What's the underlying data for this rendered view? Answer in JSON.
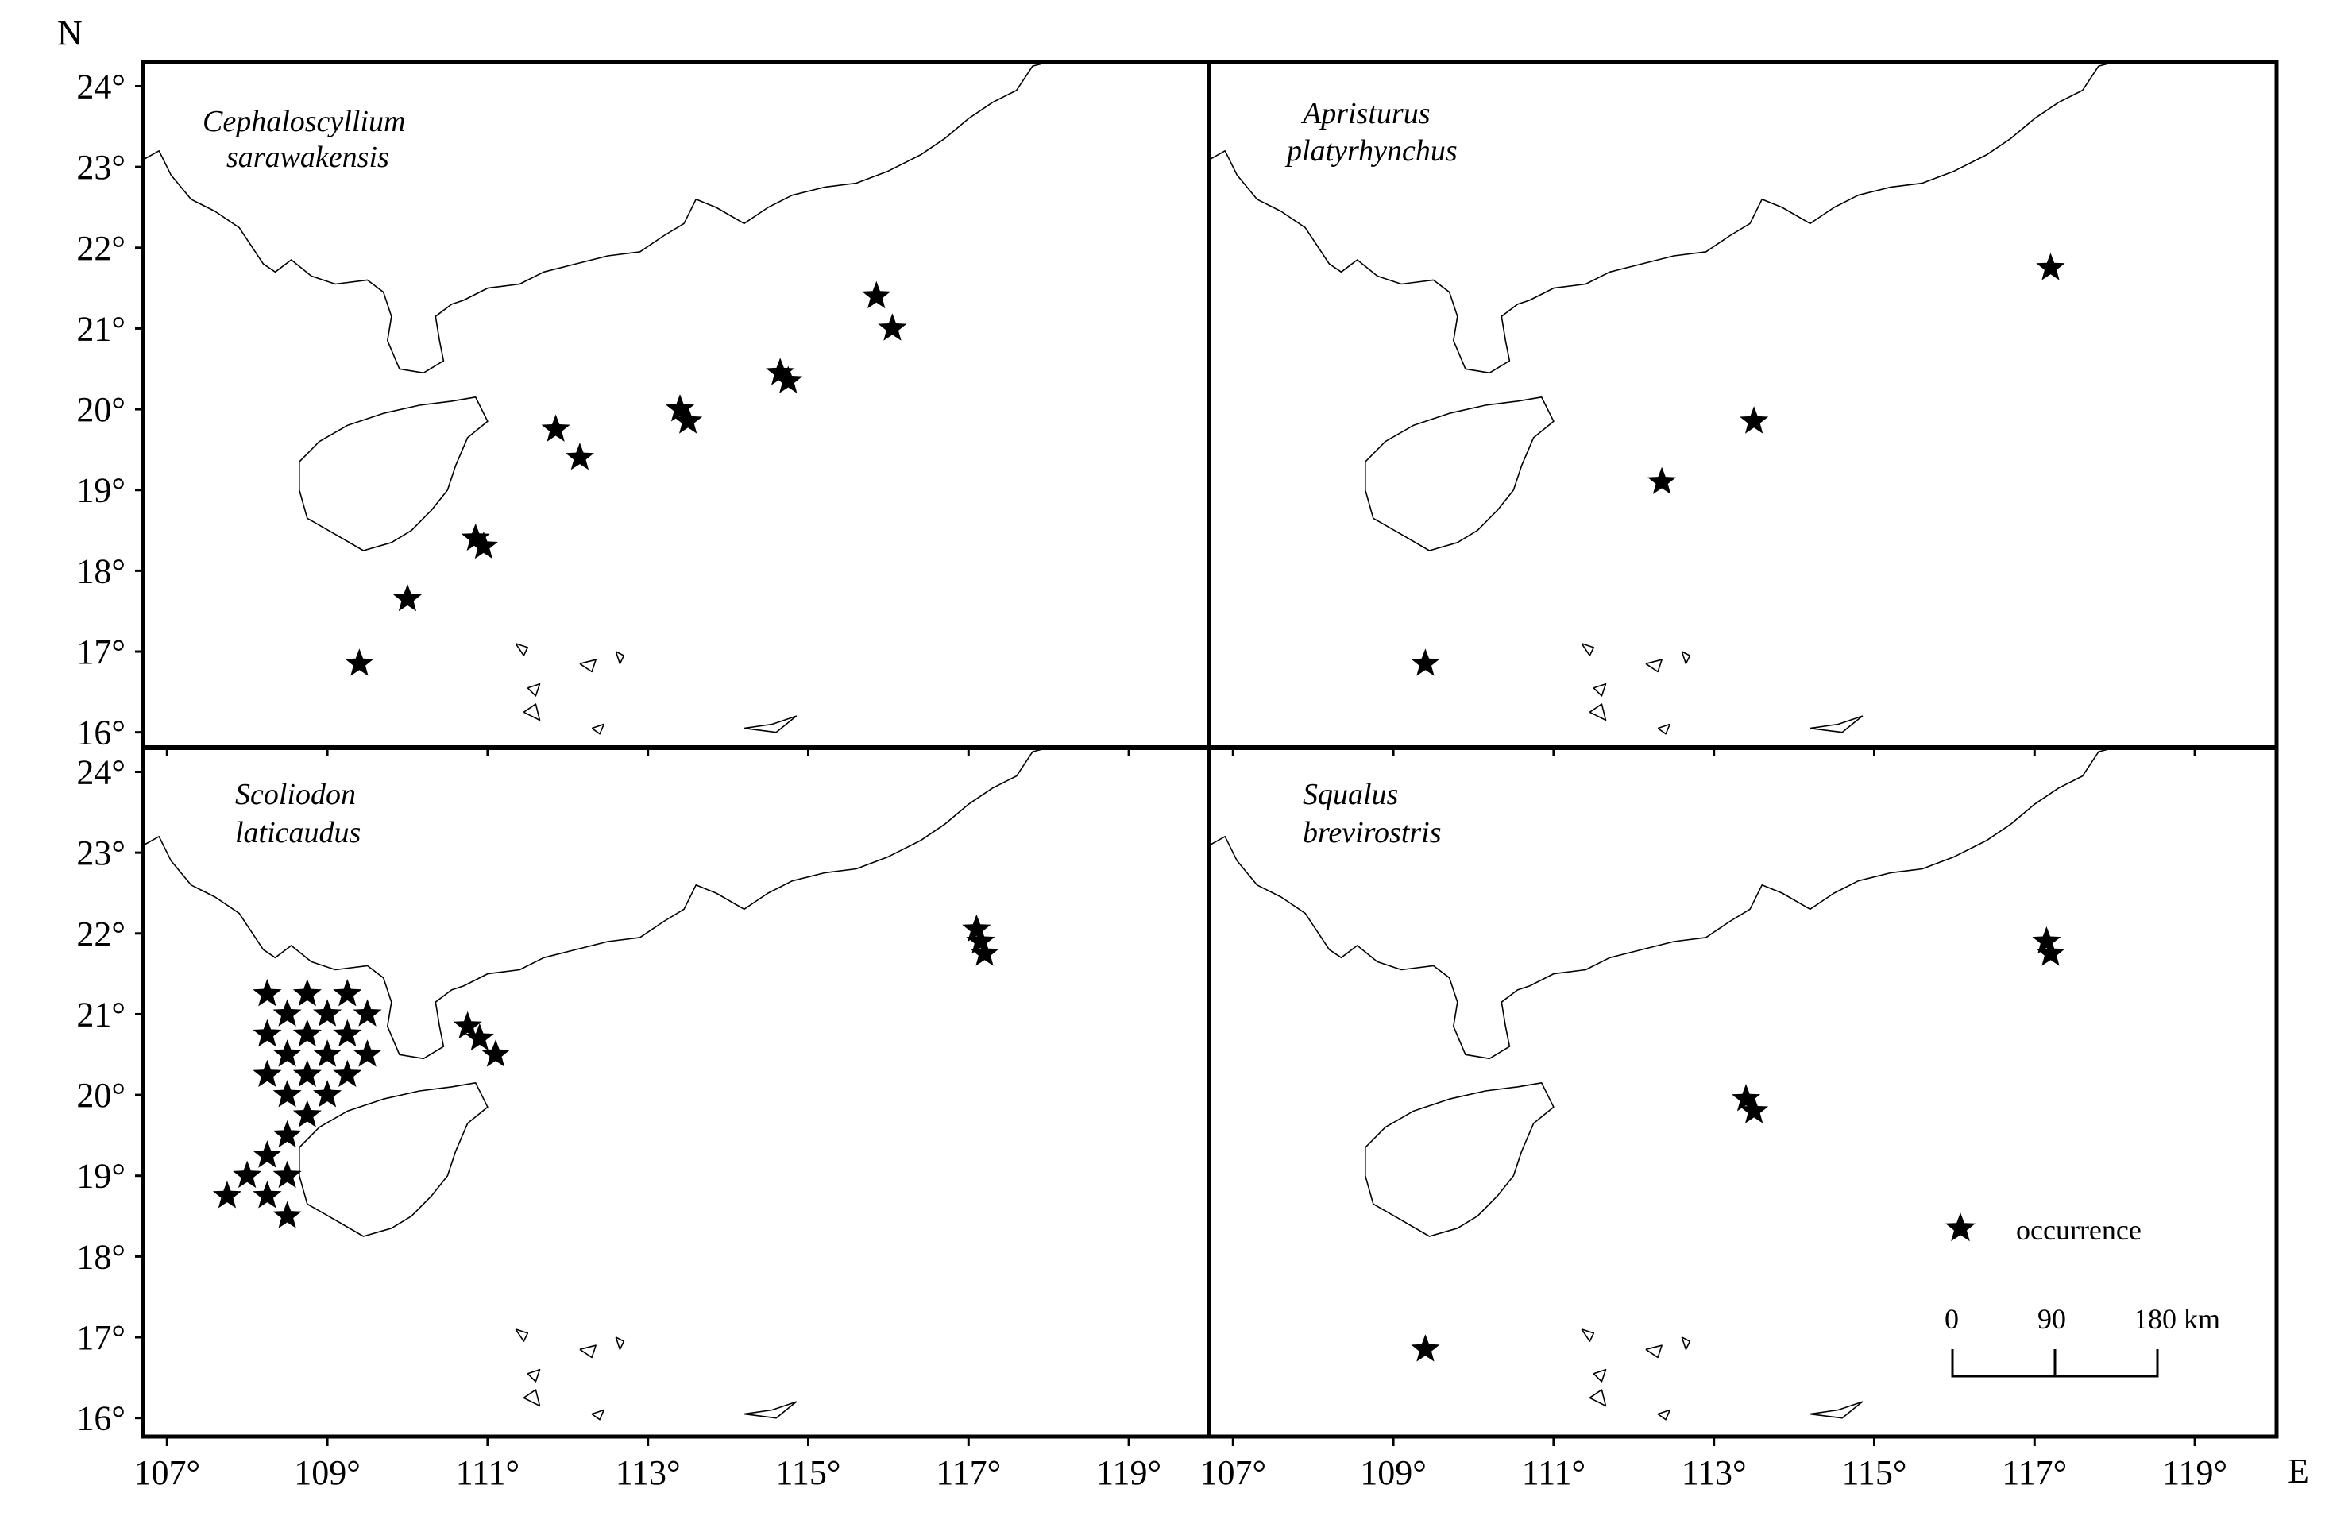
{
  "axes": {
    "north_label": "N",
    "east_label": "E",
    "lat_ticks": [
      {
        "value": 24,
        "label": "24°"
      },
      {
        "value": 23,
        "label": "23°"
      },
      {
        "value": 22,
        "label": "22°"
      },
      {
        "value": 21,
        "label": "21°"
      },
      {
        "value": 20,
        "label": "20°"
      },
      {
        "value": 19,
        "label": "19°"
      },
      {
        "value": 18,
        "label": "18°"
      },
      {
        "value": 17,
        "label": "17°"
      },
      {
        "value": 16,
        "label": "16°"
      }
    ],
    "lon_ticks": [
      {
        "value": 107,
        "label": "107°"
      },
      {
        "value": 109,
        "label": "109°"
      },
      {
        "value": 111,
        "label": "111°"
      },
      {
        "value": 113,
        "label": "113°"
      },
      {
        "value": 115,
        "label": "115°"
      },
      {
        "value": 117,
        "label": "117°"
      },
      {
        "value": 119,
        "label": "119°"
      }
    ],
    "lon_range": [
      106.7,
      120.0
    ],
    "lat_range": [
      15.8,
      24.3
    ]
  },
  "panels": [
    {
      "species_line1": "Cephaloscyllium",
      "species_line2": "sarawakensis",
      "occurrences": [
        [
          109.4,
          16.85
        ],
        [
          110.0,
          17.65
        ],
        [
          110.85,
          18.4
        ],
        [
          110.95,
          18.3
        ],
        [
          111.85,
          19.75
        ],
        [
          112.15,
          19.4
        ],
        [
          113.4,
          20.0
        ],
        [
          113.5,
          19.85
        ],
        [
          114.65,
          20.45
        ],
        [
          114.75,
          20.35
        ],
        [
          115.85,
          21.4
        ],
        [
          116.05,
          21.0
        ]
      ]
    },
    {
      "species_line1": "Apristurus",
      "species_line2": "platyrhynchus",
      "occurrences": [
        [
          109.4,
          16.85
        ],
        [
          112.35,
          19.1
        ],
        [
          113.5,
          19.85
        ],
        [
          117.2,
          21.75
        ]
      ]
    },
    {
      "species_line1": "Scoliodon",
      "species_line2": "laticaudus",
      "occurrences": [
        [
          108.25,
          21.25
        ],
        [
          108.75,
          21.25
        ],
        [
          109.25,
          21.25
        ],
        [
          108.5,
          21.0
        ],
        [
          109.0,
          21.0
        ],
        [
          109.5,
          21.0
        ],
        [
          108.25,
          20.75
        ],
        [
          108.75,
          20.75
        ],
        [
          109.25,
          20.75
        ],
        [
          108.5,
          20.5
        ],
        [
          109.0,
          20.5
        ],
        [
          109.5,
          20.5
        ],
        [
          108.25,
          20.25
        ],
        [
          108.75,
          20.25
        ],
        [
          109.25,
          20.25
        ],
        [
          108.5,
          20.0
        ],
        [
          109.0,
          20.0
        ],
        [
          108.75,
          19.75
        ],
        [
          108.5,
          19.5
        ],
        [
          108.25,
          19.25
        ],
        [
          108.0,
          19.0
        ],
        [
          108.5,
          19.0
        ],
        [
          107.75,
          18.75
        ],
        [
          108.25,
          18.75
        ],
        [
          108.5,
          18.5
        ],
        [
          110.75,
          20.85
        ],
        [
          110.9,
          20.7
        ],
        [
          111.1,
          20.5
        ],
        [
          117.1,
          22.05
        ],
        [
          117.15,
          21.9
        ],
        [
          117.2,
          21.75
        ]
      ]
    },
    {
      "species_line1": "Squalus",
      "species_line2": "brevirostris",
      "occurrences": [
        [
          109.4,
          16.85
        ],
        [
          113.4,
          19.95
        ],
        [
          113.5,
          19.8
        ],
        [
          117.15,
          21.9
        ],
        [
          117.2,
          21.75
        ]
      ]
    }
  ],
  "legend": {
    "symbol": "star-icon",
    "label": "occurrence"
  },
  "scale_bar": {
    "labels": [
      "0",
      "90",
      "180 km"
    ],
    "values_km": [
      0,
      90,
      180
    ]
  },
  "coastline": {
    "mainland": [
      [
        106.72,
        23.1
      ],
      [
        106.9,
        23.2
      ],
      [
        107.05,
        22.9
      ],
      [
        107.3,
        22.6
      ],
      [
        107.6,
        22.45
      ],
      [
        107.9,
        22.25
      ],
      [
        108.2,
        21.8
      ],
      [
        108.35,
        21.7
      ],
      [
        108.55,
        21.85
      ],
      [
        108.8,
        21.65
      ],
      [
        109.1,
        21.55
      ],
      [
        109.5,
        21.6
      ],
      [
        109.7,
        21.45
      ],
      [
        109.8,
        21.15
      ],
      [
        109.75,
        20.85
      ],
      [
        109.9,
        20.5
      ],
      [
        110.2,
        20.45
      ],
      [
        110.45,
        20.6
      ],
      [
        110.4,
        20.85
      ],
      [
        110.35,
        21.15
      ],
      [
        110.55,
        21.3
      ],
      [
        110.7,
        21.35
      ],
      [
        111.0,
        21.5
      ],
      [
        111.4,
        21.55
      ],
      [
        111.7,
        21.7
      ],
      [
        112.1,
        21.8
      ],
      [
        112.5,
        21.9
      ],
      [
        112.9,
        21.95
      ],
      [
        113.2,
        22.15
      ],
      [
        113.45,
        22.3
      ],
      [
        113.6,
        22.6
      ],
      [
        113.85,
        22.5
      ],
      [
        114.2,
        22.3
      ],
      [
        114.5,
        22.5
      ],
      [
        114.8,
        22.65
      ],
      [
        115.2,
        22.75
      ],
      [
        115.6,
        22.8
      ],
      [
        116.0,
        22.95
      ],
      [
        116.4,
        23.15
      ],
      [
        116.7,
        23.35
      ],
      [
        117.0,
        23.6
      ],
      [
        117.3,
        23.8
      ],
      [
        117.6,
        23.95
      ],
      [
        117.8,
        24.25
      ],
      [
        118.0,
        24.3
      ]
    ],
    "hainan": [
      [
        108.65,
        19.35
      ],
      [
        108.65,
        19.0
      ],
      [
        108.75,
        18.65
      ],
      [
        109.1,
        18.45
      ],
      [
        109.45,
        18.25
      ],
      [
        109.8,
        18.35
      ],
      [
        110.05,
        18.5
      ],
      [
        110.3,
        18.75
      ],
      [
        110.5,
        19.0
      ],
      [
        110.6,
        19.3
      ],
      [
        110.75,
        19.65
      ],
      [
        111.0,
        19.85
      ],
      [
        110.85,
        20.15
      ],
      [
        110.55,
        20.1
      ],
      [
        110.15,
        20.05
      ],
      [
        109.7,
        19.95
      ],
      [
        109.25,
        19.8
      ],
      [
        108.9,
        19.6
      ],
      [
        108.65,
        19.35
      ]
    ],
    "islands": [
      [
        [
          111.35,
          17.1
        ],
        [
          111.5,
          17.05
        ],
        [
          111.45,
          16.95
        ],
        [
          111.35,
          17.1
        ]
      ],
      [
        [
          112.15,
          16.85
        ],
        [
          112.35,
          16.9
        ],
        [
          112.3,
          16.75
        ],
        [
          112.15,
          16.85
        ]
      ],
      [
        [
          112.6,
          17.0
        ],
        [
          112.7,
          16.95
        ],
        [
          112.65,
          16.85
        ],
        [
          112.6,
          17.0
        ]
      ],
      [
        [
          111.5,
          16.55
        ],
        [
          111.65,
          16.6
        ],
        [
          111.6,
          16.45
        ],
        [
          111.5,
          16.55
        ]
      ],
      [
        [
          111.45,
          16.25
        ],
        [
          111.6,
          16.35
        ],
        [
          111.65,
          16.15
        ],
        [
          111.45,
          16.25
        ]
      ],
      [
        [
          112.3,
          16.05
        ],
        [
          112.45,
          16.1
        ],
        [
          112.4,
          15.98
        ],
        [
          112.3,
          16.05
        ]
      ],
      [
        [
          114.2,
          16.05
        ],
        [
          114.55,
          16.1
        ],
        [
          114.85,
          16.2
        ],
        [
          114.6,
          16.0
        ],
        [
          114.2,
          16.05
        ]
      ]
    ]
  }
}
